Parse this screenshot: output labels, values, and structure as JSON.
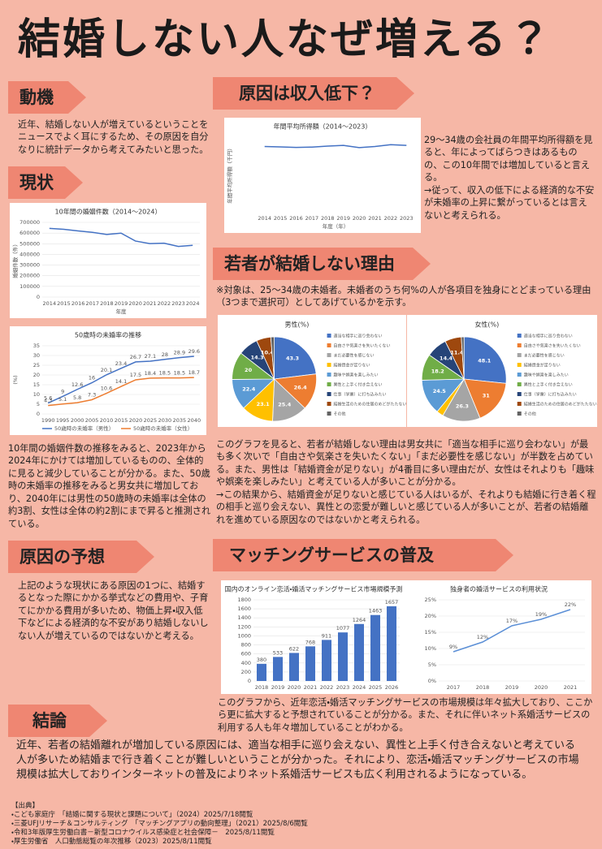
{
  "title": "結婚しない人なぜ増える？",
  "motive": {
    "heading": "動機",
    "paragraphs": [
      "近年、結婚しない人が増えているということをニュースでよく耳にするため、その原因を自分なりに統計データから考えてみたいと思った。"
    ]
  },
  "income": {
    "heading": "原因は収入低下？",
    "paragraphs": [
      "29～34歳の会社員の年間平均所得額を見ると、年によってばらつきはあるものの、この10年間では増加していると言える。",
      "→従って、収入の低下による経済的な不安が未婚率の上昇に繋がっているとは言えないと考えられる。"
    ]
  },
  "status": {
    "heading": "現状",
    "paragraphs": [
      "10年間の婚姻件数の推移をみると、2023年から2024年にかけては増加しているものの、全体的に見ると減少していることが分かる。また、50歳時の未婚率の推移をみると男女共に増加しており、2040年には男性の50歳時の未婚率は全体の約3割、女性は全体の約2割にまで昇ると推測されている。"
    ]
  },
  "reasons": {
    "heading": "若者が結婚しない理由",
    "note": "※対象は、25～34歳の未婚者。未婚者のうち何%の人が各項目を独身にとどまっている理由（3つまで選択可）としてあげているかを示す。",
    "paragraphs": [
      "このグラフを見ると、若者が結婚しない理由は男女共に「適当な相手に巡り会わない」が最も多く次いで「自由さや気楽さを失いたくない」「まだ必要性を感じない」が半数を占めている。また、男性は「結婚資金が足りない」が4番目に多い理由だが、女性はそれよりも「趣味や娯楽を楽しみたい」と考えている人が多いことが分かる。",
      "→この結果から、結婚資金が足りないと感じている人はいるが、それよりも結婚に行き着く程の相手と巡り会えない、異性との恋愛が難しいと感じている人が多いことが、若者の結婚離れを進めている原因なのではないかと考えられる。"
    ]
  },
  "hypothesis": {
    "heading": "原因の予想",
    "paragraphs": [
      "上記のような現状にある原因の1つに、結婚するとなった際にかかる挙式などの費用や、子育てにかかる費用が多いため、物価上昇・収入低下などによる経済的な不安があり結婚しないしない人が増えているのではないかと考える。"
    ]
  },
  "matching": {
    "heading": "マッチングサービスの普及",
    "paragraphs": [
      "このグラフから、近年恋活・婚活マッチングサービスの市場規模は年々拡大しており、ここから更に拡大すると予想されていることが分かる。また、それに伴いネット系婚活サービスの利用する人も年々増加していることがわかる。"
    ]
  },
  "conclusion": {
    "heading": "結論",
    "paragraphs": [
      "近年、若者の結婚離れが増加している原因には、適当な相手に巡り会えない、異性と上手く付き合えないと考えている人が多いため結婚まで行き着くことが難しいということが分かった。それにより、恋活・婚活マッチングサービスの市場規模は拡大しておりインターネットの普及によりネット系婚活サービスも広く利用されるようになっている。"
    ]
  },
  "sources": {
    "heading": "【出典】",
    "items": [
      "・こども家庭庁　「結婚に関する現状と課題について」（2024）2025/7/18閲覧",
      "・三菱UFJリサーチ＆コンサルティング　「マッチングアプリの動向整理」（2021）2025/8/6閲覧",
      "・令和3年版厚生労働白書－新型コロナウイルス感染症と社会保障－　2025/8/11閲覧",
      "・厚生労働省　人口動態総覧の年次推移（2023）2025/8/11閲覧"
    ]
  },
  "chart_data": [
    {
      "type": "line",
      "title": "年間平均所得額（2014～2023）",
      "xlabel": "年度（年）",
      "ylabel": "年間平均所得額（千円）",
      "x": [
        2014,
        2015,
        2016,
        2017,
        2018,
        2019,
        2020,
        2021,
        2022,
        2023
      ],
      "xlim": [
        2013.5,
        2023.5
      ],
      "values": [
        3500,
        3480,
        3450,
        3470,
        3520,
        3560,
        3440,
        3500,
        3600,
        3560
      ],
      "color": "#4472c4",
      "ylim": [
        0,
        4000
      ],
      "grid": true
    },
    {
      "type": "line",
      "title": "10年間の婚姻件数（2014～2024）",
      "xlabel": "年度",
      "ylabel": "婚姻件数（件）",
      "x": [
        2014,
        2015,
        2016,
        2017,
        2018,
        2019,
        2020,
        2021,
        2022,
        2023,
        2024
      ],
      "xlim": [
        2013.5,
        2024.5
      ],
      "values": [
        643749,
        635156,
        620531,
        606952,
        586481,
        599007,
        525507,
        501138,
        504930,
        474741,
        485063
      ],
      "color": "#4472c4",
      "ylim": [
        0,
        700000
      ],
      "yticks": [
        0,
        100000,
        200000,
        300000,
        400000,
        500000,
        600000,
        700000
      ],
      "grid": true
    },
    {
      "type": "line",
      "title": "50歳時の未婚率の推移",
      "ylabel": "(%)",
      "show_values": true,
      "x": [
        1990,
        1995,
        2000,
        2005,
        2010,
        2015,
        2020,
        2025,
        2030,
        2035,
        2040
      ],
      "xlim": [
        1988,
        2042
      ],
      "series": [
        {
          "name": "50歳時の未婚率（男性）",
          "color": "#4472c4",
          "values": [
            5.6,
            9,
            12.6,
            16,
            20.1,
            23.4,
            26.7,
            27.1,
            28,
            28.9,
            29.6
          ]
        },
        {
          "name": "50歳時の未婚率（女性）",
          "color": "#ed7d31",
          "values": [
            4.3,
            5.1,
            5.8,
            7.3,
            10.6,
            14.1,
            17.5,
            18.4,
            18.5,
            18.5,
            18.7
          ]
        }
      ],
      "ylim": [
        0,
        35
      ],
      "yticks": [
        0,
        5,
        10,
        15,
        20,
        25,
        30,
        35
      ],
      "grid": true
    },
    {
      "type": "pie",
      "title": "男性(%)",
      "categories": [
        "適当な相手に巡り会わない",
        "自由さや気楽さを失いたくない",
        "まだ必要性を感じない",
        "結婚資金が足りない",
        "趣味や娯楽を楽しみたい",
        "異性と上手く付き合えない",
        "仕事（学業）に打ち込みたい",
        "結婚生活のための住居のめどがたたない",
        "その他"
      ],
      "values": [
        43.3,
        26.4,
        25.4,
        23.1,
        22.4,
        20,
        14.3,
        10.4,
        2.5
      ],
      "colors": [
        "#4472c4",
        "#ed7d31",
        "#a5a5a5",
        "#ffc000",
        "#5b9bd5",
        "#70ad47",
        "#264478",
        "#9e480e",
        "#636363"
      ]
    },
    {
      "type": "pie",
      "title": "女性(%)",
      "categories": [
        "適当な相手に巡り会わない",
        "自由さや気楽さを失いたくない",
        "まだ必要性を感じない",
        "結婚資金が足りない",
        "趣味や娯楽を楽しみたい",
        "異性と上手く付き合えない",
        "仕事（学業）に打ち込みたい",
        "結婚生活のための住居のめどがたたない",
        "その他"
      ],
      "values": [
        48.1,
        31,
        26.3,
        4.7,
        24.5,
        18.2,
        14.4,
        11.4,
        1.9
      ],
      "colors": [
        "#4472c4",
        "#ed7d31",
        "#a5a5a5",
        "#ffc000",
        "#5b9bd5",
        "#70ad47",
        "#264478",
        "#9e480e",
        "#636363"
      ]
    },
    {
      "type": "bar",
      "title": "国内のオンライン恋活・婚活マッチングサービス市場規模予測",
      "show_values": true,
      "categories": [
        "2018",
        "2019",
        "2020",
        "2021",
        "2022",
        "2023",
        "2024",
        "2025",
        "2026"
      ],
      "values": [
        380,
        533,
        622,
        768,
        911,
        1077,
        1264,
        1463,
        1657
      ],
      "color": "#4472c4",
      "ylim": [
        0,
        1800
      ],
      "yticks": [
        0,
        200,
        400,
        600,
        800,
        1000,
        1200,
        1400,
        1600,
        1800
      ],
      "grid": true
    },
    {
      "type": "line",
      "title": "独身者の婚活サービスの利用状況",
      "x": [
        2017,
        2018,
        2019,
        2020,
        2021
      ],
      "xlim": [
        2016.5,
        2021.5
      ],
      "values": [
        9,
        12,
        17,
        19,
        22
      ],
      "value_labels": [
        "9%",
        "12%",
        "17%",
        "19%",
        "22%"
      ],
      "color": "#5b8fd6",
      "ylim": [
        0,
        25
      ],
      "yticks": [
        {
          "value": 0,
          "label": "0%"
        },
        {
          "value": 5,
          "label": "5%"
        },
        {
          "value": 10,
          "label": "10%"
        },
        {
          "value": 15,
          "label": "15%"
        },
        {
          "value": 20,
          "label": "20%"
        },
        {
          "value": 25,
          "label": "25%"
        }
      ],
      "grid": true
    }
  ]
}
